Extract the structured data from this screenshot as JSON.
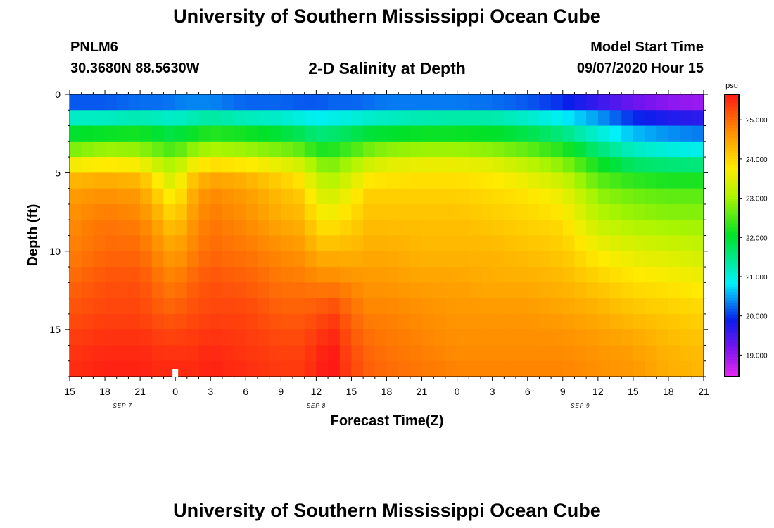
{
  "header": {
    "title": "University of Southern Mississippi Ocean Cube",
    "footer_title": "University of Southern Mississippi Ocean Cube",
    "station": "PNLM6",
    "coords": "30.3680N 88.5630W",
    "model_label": "Model Start Time",
    "model_time": "09/07/2020 Hour 15"
  },
  "chart_data": {
    "type": "heatmap",
    "title": "2-D Salinity at Depth",
    "xlabel": "Forecast Time(Z)",
    "ylabel": "Depth (ft)",
    "ylim": [
      0,
      18
    ],
    "y_ticks": [
      0,
      5,
      10,
      15
    ],
    "x_ticks_hours": [
      0,
      3,
      6,
      9,
      12,
      15,
      18,
      21,
      24,
      27,
      30,
      33,
      36,
      39,
      42,
      45,
      48,
      51,
      54
    ],
    "x_tick_labels": [
      "15",
      "18",
      "21",
      "0",
      "3",
      "6",
      "9",
      "12",
      "15",
      "18",
      "21",
      "0",
      "3",
      "6",
      "9",
      "12",
      "15",
      "18",
      "21"
    ],
    "x_range_hours": [
      0,
      54
    ],
    "date_labels": [
      {
        "text": "SEP 7",
        "hour": 4.5
      },
      {
        "text": "SEP 8",
        "hour": 21
      },
      {
        "text": "SEP 9",
        "hour": 43.5
      }
    ],
    "colorbar": {
      "unit": "psu",
      "min": 18.45,
      "max": 25.65,
      "ticks": [
        19,
        20,
        21,
        22,
        23,
        24,
        25
      ],
      "tick_labels": [
        "19.000",
        "20.000",
        "21.000",
        "22.000",
        "23.000",
        "24.000",
        "25.000"
      ]
    },
    "profile_hours": [
      0,
      3,
      6,
      8,
      9,
      10,
      12,
      15,
      18,
      20,
      21,
      22.5,
      24,
      25.5,
      27,
      30,
      33,
      36,
      39,
      42,
      45,
      48,
      51,
      54
    ],
    "profile_depths": [
      0,
      1,
      2,
      3,
      4,
      5,
      6,
      8,
      10,
      12,
      14,
      16,
      18
    ],
    "salinity_profiles": [
      [
        19.7,
        20.6,
        21.7,
        22.3,
        23.2,
        24.1,
        24.5,
        24.7,
        24.8,
        25.0,
        25.2,
        25.4,
        25.5
      ],
      [
        19.7,
        20.6,
        21.7,
        22.5,
        23.4,
        24.2,
        24.6,
        24.9,
        25.0,
        25.2,
        25.3,
        25.5,
        25.6
      ],
      [
        19.8,
        20.7,
        21.8,
        22.5,
        23.3,
        24.1,
        24.5,
        24.8,
        25.0,
        25.2,
        25.3,
        25.5,
        25.6
      ],
      [
        19.9,
        20.6,
        21.7,
        22.2,
        22.9,
        23.4,
        23.8,
        24.3,
        24.6,
        24.9,
        25.1,
        25.4,
        25.5
      ],
      [
        20.0,
        20.6,
        21.6,
        22.1,
        22.8,
        23.2,
        23.5,
        24.0,
        24.5,
        24.8,
        25.1,
        25.4,
        25.6
      ],
      [
        20.0,
        20.7,
        21.7,
        22.4,
        23.2,
        23.9,
        24.2,
        24.5,
        24.7,
        25.0,
        25.2,
        25.4,
        25.5
      ],
      [
        19.9,
        20.8,
        21.9,
        22.6,
        23.5,
        24.3,
        24.7,
        24.9,
        25.0,
        25.2,
        25.3,
        25.5,
        25.6
      ],
      [
        19.8,
        20.6,
        21.8,
        22.5,
        23.4,
        24.2,
        24.5,
        24.7,
        24.9,
        25.1,
        25.3,
        25.4,
        25.5
      ],
      [
        19.8,
        20.6,
        21.6,
        22.3,
        23.2,
        23.9,
        24.2,
        24.4,
        24.7,
        24.9,
        25.1,
        25.3,
        25.4
      ],
      [
        19.8,
        20.5,
        21.4,
        22.1,
        23.0,
        23.6,
        24.0,
        24.3,
        24.6,
        24.9,
        25.1,
        25.3,
        25.4
      ],
      [
        19.9,
        20.4,
        21.3,
        21.8,
        22.6,
        23.1,
        23.4,
        23.8,
        24.3,
        24.8,
        25.2,
        25.5,
        25.6
      ],
      [
        19.9,
        20.5,
        21.4,
        21.9,
        22.6,
        23.0,
        23.3,
        23.8,
        24.3,
        24.8,
        25.3,
        25.6,
        25.7
      ],
      [
        19.9,
        20.5,
        21.5,
        22.1,
        22.8,
        23.3,
        23.6,
        24.0,
        24.3,
        24.7,
        25.0,
        25.2,
        25.3
      ],
      [
        19.9,
        20.6,
        21.6,
        22.3,
        23.1,
        23.6,
        24.0,
        24.2,
        24.4,
        24.6,
        24.8,
        25.0,
        25.1
      ],
      [
        19.9,
        20.7,
        21.6,
        22.4,
        23.3,
        23.7,
        24.0,
        24.2,
        24.4,
        24.6,
        24.8,
        24.9,
        25.0
      ],
      [
        19.8,
        20.8,
        21.7,
        22.5,
        23.4,
        23.8,
        24.0,
        24.2,
        24.3,
        24.5,
        24.7,
        24.8,
        24.9
      ],
      [
        19.7,
        20.9,
        21.7,
        22.5,
        23.4,
        23.8,
        24.0,
        24.2,
        24.3,
        24.5,
        24.6,
        24.7,
        24.8
      ],
      [
        19.6,
        20.9,
        21.7,
        22.4,
        23.3,
        23.7,
        23.9,
        24.1,
        24.3,
        24.4,
        24.6,
        24.7,
        24.8
      ],
      [
        19.6,
        20.7,
        21.5,
        22.2,
        23.0,
        23.4,
        23.8,
        24.0,
        24.2,
        24.4,
        24.6,
        24.7,
        24.8
      ],
      [
        19.4,
        20.5,
        21.2,
        21.9,
        22.6,
        23.1,
        23.5,
        23.9,
        24.1,
        24.3,
        24.5,
        24.7,
        24.8
      ],
      [
        19.1,
        20.1,
        20.8,
        21.3,
        21.9,
        22.4,
        22.8,
        23.2,
        23.7,
        24.1,
        24.4,
        24.6,
        24.7
      ],
      [
        18.9,
        19.6,
        20.3,
        20.9,
        21.4,
        22.0,
        22.6,
        23.0,
        23.5,
        23.9,
        24.2,
        24.5,
        24.6
      ],
      [
        18.7,
        19.4,
        20.1,
        20.7,
        21.3,
        21.9,
        22.5,
        22.9,
        23.4,
        23.8,
        24.1,
        24.3,
        24.4
      ],
      [
        18.6,
        19.3,
        20.0,
        20.6,
        21.2,
        21.9,
        22.5,
        22.9,
        23.3,
        23.7,
        24.0,
        24.2,
        24.3
      ]
    ]
  }
}
